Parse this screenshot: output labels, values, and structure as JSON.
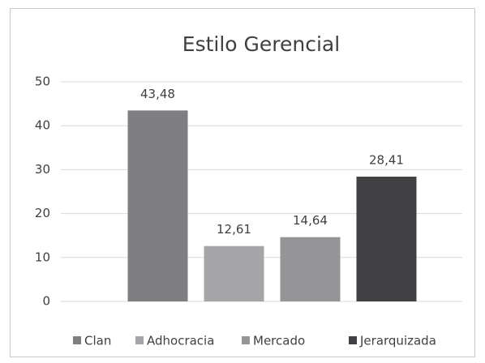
{
  "chart_data": {
    "type": "bar",
    "title": "Estilo Gerencial",
    "categories": [
      null
    ],
    "series": [
      {
        "name": "Clan",
        "color": "#7f7f81",
        "values": [
          43.48
        ],
        "value_labels": [
          "43,48"
        ]
      },
      {
        "name": "Adhocracia",
        "color": "#a6a6a8",
        "values": [
          12.61
        ],
        "value_labels": [
          "12,61"
        ]
      },
      {
        "name": "Mercado",
        "color": "#959597",
        "values": [
          14.64
        ],
        "value_labels": [
          "14,64"
        ]
      },
      {
        "name": "Jerarquizada",
        "color": "#414143",
        "values": [
          28.41
        ],
        "value_labels": [
          "28,41"
        ]
      }
    ],
    "ylim": [
      0,
      50
    ],
    "yticks": [
      0,
      10,
      20,
      30,
      40,
      50
    ],
    "grid": true,
    "legend": "bottom"
  }
}
